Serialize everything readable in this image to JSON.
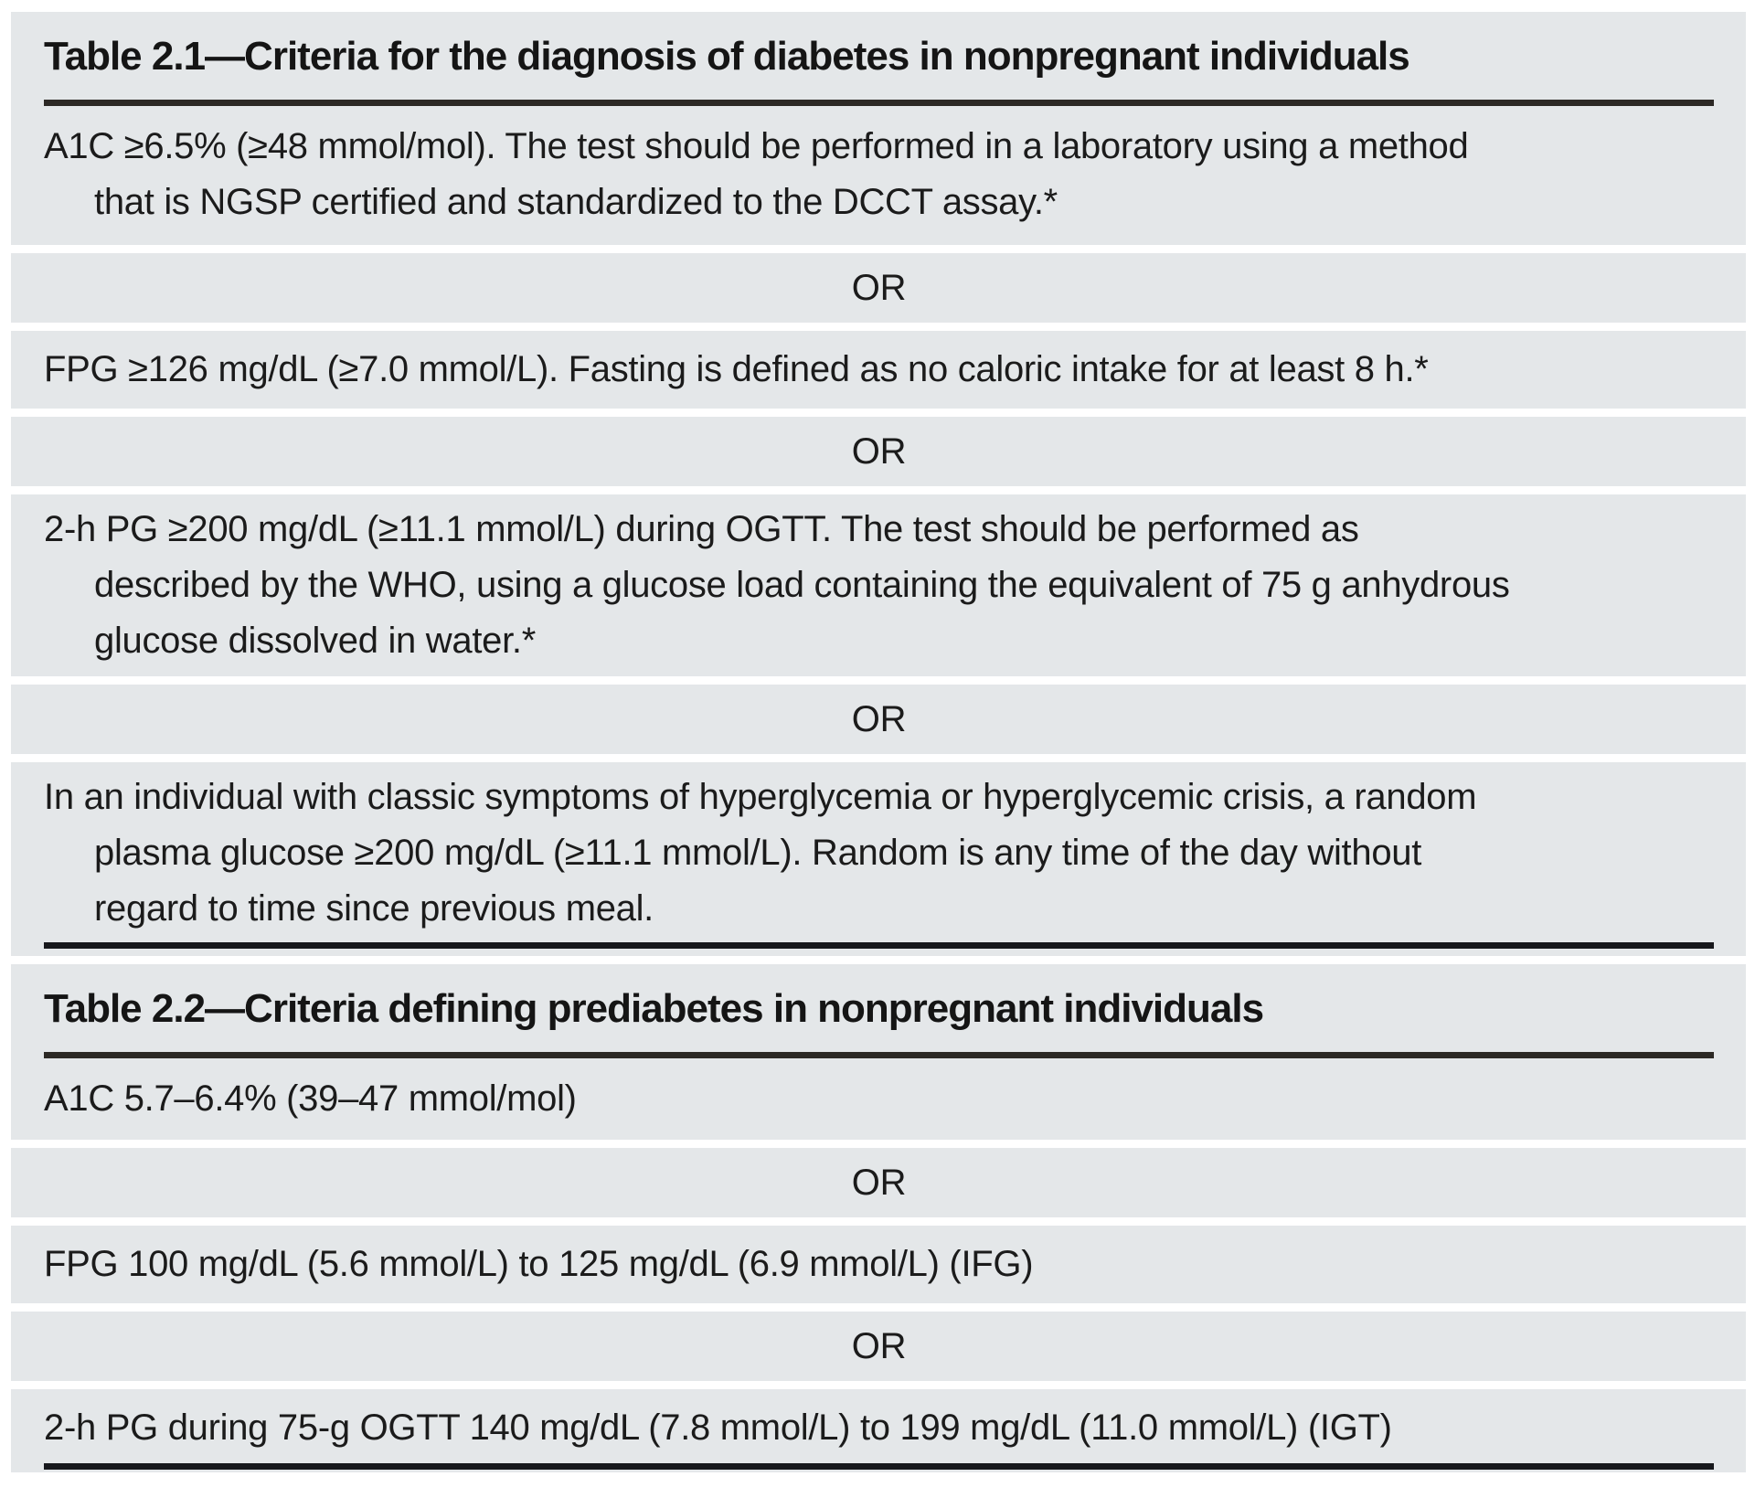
{
  "colors": {
    "page_background": "#ffffff",
    "block_background": "#e4e7e9",
    "text": "#1b1b1b",
    "header_rule": "#2c2925",
    "bottom_rule": "#17181c"
  },
  "tables": [
    {
      "title": "Table 2.1—Criteria for the diagnosis of diabetes in nonpregnant individuals",
      "or_label": "OR",
      "criteria": [
        {
          "lines": [
            "A1C ≥6.5% (≥48 mmol/mol). The test should be performed in a laboratory using a method",
            "that is NGSP certified and standardized to the DCCT assay.*"
          ]
        },
        {
          "lines": [
            "FPG ≥126 mg/dL (≥7.0 mmol/L). Fasting is defined as no caloric intake for at least 8 h.*"
          ]
        },
        {
          "lines": [
            "2-h PG ≥200 mg/dL (≥11.1 mmol/L) during OGTT. The test should be performed as",
            "described by the WHO, using a glucose load containing the equivalent of 75 g anhydrous",
            "glucose dissolved in water.*"
          ]
        },
        {
          "lines": [
            "In an individual with classic symptoms of hyperglycemia or hyperglycemic crisis, a random",
            "plasma glucose ≥200 mg/dL (≥11.1 mmol/L). Random is any time of the day without",
            "regard to time since previous meal."
          ]
        }
      ]
    },
    {
      "title": "Table 2.2—Criteria defining prediabetes in nonpregnant individuals",
      "or_label": "OR",
      "criteria": [
        {
          "lines": [
            "A1C 5.7–6.4% (39–47 mmol/mol)"
          ]
        },
        {
          "lines": [
            "FPG 100 mg/dL (5.6 mmol/L) to 125 mg/dL (6.9 mmol/L) (IFG)"
          ]
        },
        {
          "lines": [
            "2-h PG during 75-g OGTT 140 mg/dL (7.8 mmol/L) to 199 mg/dL (11.0 mmol/L) (IGT)"
          ]
        }
      ]
    }
  ]
}
